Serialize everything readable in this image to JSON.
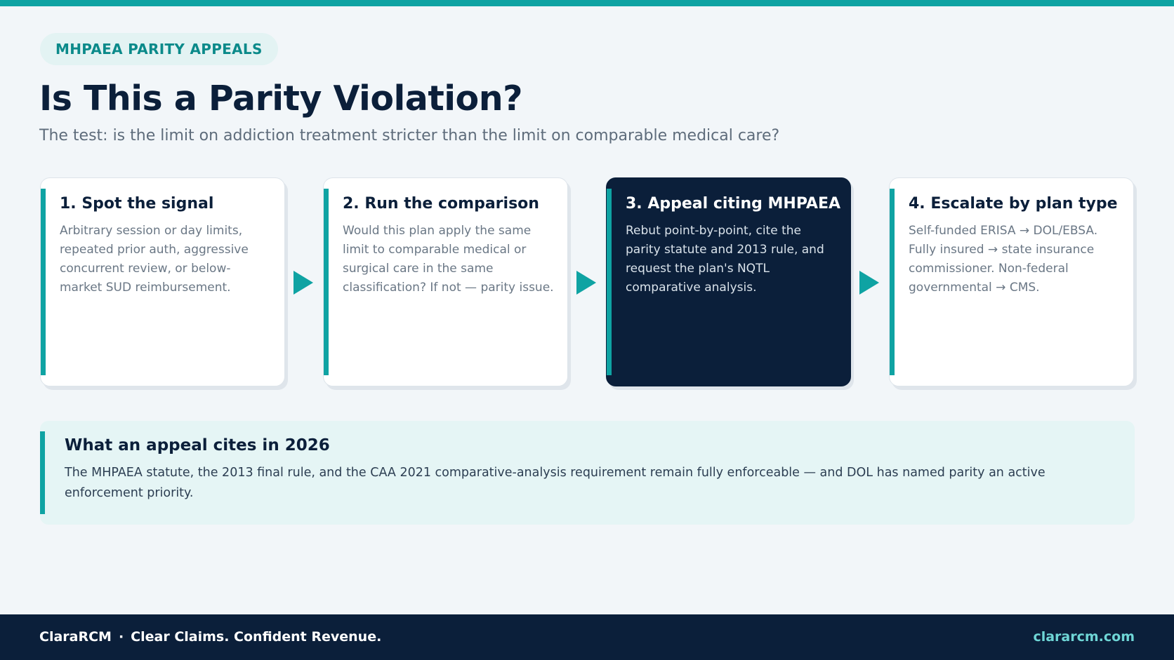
{
  "header": {
    "badge": "MHPAEA PARITY APPEALS",
    "title": "Is This a Parity Violation?",
    "subtitle": "The test: is the limit on addiction treatment stricter than the limit on comparable medical care?"
  },
  "steps": [
    {
      "title": "1. Spot the signal",
      "body": "Arbitrary session or day limits, repeated prior auth, aggressive concurrent review, or below-market SUD reimbursement."
    },
    {
      "title": "2. Run the comparison",
      "body": "Would this plan apply the same limit to comparable medical or surgical care in the same classification? If not — parity issue."
    },
    {
      "title": "3. Appeal citing MHPAEA",
      "body": "Rebut point-by-point, cite the parity statute and 2013 rule, and request the plan's NQTL comparative analysis."
    },
    {
      "title": "4. Escalate by plan type",
      "body": "Self-funded ERISA → DOL/EBSA. Fully insured → state insurance commissioner. Non-federal governmental → CMS."
    }
  ],
  "callout": {
    "title": "What an appeal cites in 2026",
    "body": "The MHPAEA statute, the 2013 final rule, and the CAA 2021 comparative-analysis requirement remain fully enforceable — and DOL has named parity an active enforcement priority."
  },
  "footer": {
    "brand": "ClaraRCM",
    "separator": "·",
    "tagline": "Clear Claims. Confident Revenue.",
    "url": "clararcm.com"
  }
}
